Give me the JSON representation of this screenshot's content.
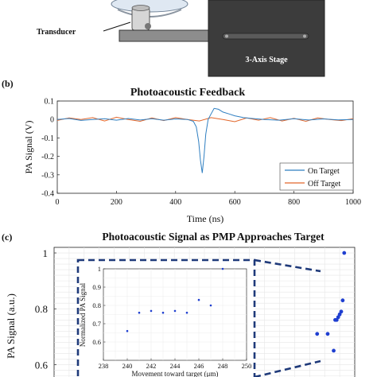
{
  "setup": {
    "transducer_label": "Transducer",
    "stage_label": "3-Axis Stage"
  },
  "panel_b": {
    "label": "(b)",
    "title": "Photoacoustic Feedback",
    "ylabel": "PA Signal (V)",
    "xlabel": "Time (ns)",
    "legend": [
      "On Target",
      "Off Target"
    ]
  },
  "panel_c": {
    "label": "(c)",
    "title": "Photoacoustic Signal as PMP Approaches Target",
    "ylabel": "PA Signal (a.u.)",
    "inset_ylabel": "Normalized PA Signal",
    "inset_xlabel": "Movement toward target (μm)"
  },
  "colors": {
    "on_target": "#2f7fc1",
    "off_target": "#e2662a",
    "points": "#1f3fd0",
    "dash_box": "#1f3a7a",
    "stage": "#404040"
  },
  "chart_data": [
    {
      "type": "line",
      "title": "Photoacoustic Feedback",
      "xlabel": "Time (ns)",
      "ylabel": "PA Signal (V)",
      "xlim": [
        0,
        1000
      ],
      "ylim": [
        -0.4,
        0.1
      ],
      "xticks": [
        "0",
        "200",
        "400",
        "600",
        "800",
        "1000"
      ],
      "yticks": [
        "0.1",
        "0",
        "-0.1",
        "-0.2",
        "-0.3",
        "-0.4"
      ],
      "legend_placement": "bottom-right",
      "series": [
        {
          "name": "On Target",
          "x": [
            0,
            40,
            80,
            120,
            160,
            200,
            240,
            280,
            320,
            360,
            400,
            440,
            460,
            470,
            478,
            484,
            490,
            496,
            502,
            510,
            520,
            530,
            545,
            560,
            580,
            600,
            630,
            660,
            700,
            750,
            800,
            850,
            900,
            950,
            1000
          ],
          "y": [
            0.0,
            0.005,
            -0.005,
            0.0,
            0.004,
            -0.004,
            0.005,
            -0.003,
            0.004,
            -0.004,
            0.003,
            0.0,
            -0.01,
            -0.04,
            -0.12,
            -0.22,
            -0.29,
            -0.2,
            -0.08,
            0.0,
            0.03,
            0.06,
            0.055,
            0.04,
            0.03,
            0.02,
            0.01,
            0.005,
            0.0,
            -0.004,
            0.004,
            -0.003,
            0.003,
            -0.002,
            0.0
          ]
        },
        {
          "name": "Off Target",
          "x": [
            0,
            40,
            80,
            120,
            160,
            200,
            240,
            280,
            320,
            360,
            400,
            440,
            480,
            520,
            560,
            600,
            640,
            680,
            720,
            760,
            800,
            840,
            880,
            920,
            960,
            1000
          ],
          "y": [
            -0.005,
            0.008,
            0.0,
            0.01,
            -0.008,
            0.012,
            0.0,
            -0.01,
            0.008,
            -0.006,
            0.01,
            0.0,
            -0.008,
            0.01,
            0.0,
            -0.012,
            0.008,
            -0.004,
            0.01,
            -0.008,
            0.006,
            -0.01,
            0.008,
            0.0,
            -0.006,
            0.004
          ]
        }
      ]
    },
    {
      "type": "scatter",
      "title": "Photoacoustic Signal as PMP Approaches Target",
      "ylabel": "PA Signal (a.u.)",
      "ylim": [
        0.55,
        1.02
      ],
      "yticks": [
        "1",
        "0.8",
        "0.6"
      ],
      "xlim": [
        0,
        10
      ],
      "series": [
        {
          "x": [
            8.75,
            9.1,
            9.3,
            9.35,
            9.4,
            9.45,
            9.5,
            9.55,
            9.6,
            9.65
          ],
          "y": [
            0.71,
            0.71,
            0.65,
            0.76,
            0.76,
            0.77,
            0.78,
            0.79,
            0.83,
            1.0
          ]
        }
      ]
    },
    {
      "type": "scatter",
      "title": "",
      "xlabel": "Movement toward target (μm)",
      "ylabel": "Normalized PA Signal",
      "xlim": [
        238,
        250
      ],
      "ylim": [
        0.5,
        1.0
      ],
      "xticks": [
        "238",
        "240",
        "242",
        "244",
        "246",
        "248",
        "250"
      ],
      "yticks": [
        "1",
        "0.9",
        "0.8",
        "0.7",
        "0.6"
      ],
      "series": [
        {
          "x": [
            240,
            241,
            242,
            243,
            244,
            245,
            246,
            247,
            248
          ],
          "y": [
            0.66,
            0.76,
            0.77,
            0.76,
            0.77,
            0.76,
            0.83,
            0.8,
            1.0
          ]
        }
      ]
    }
  ]
}
